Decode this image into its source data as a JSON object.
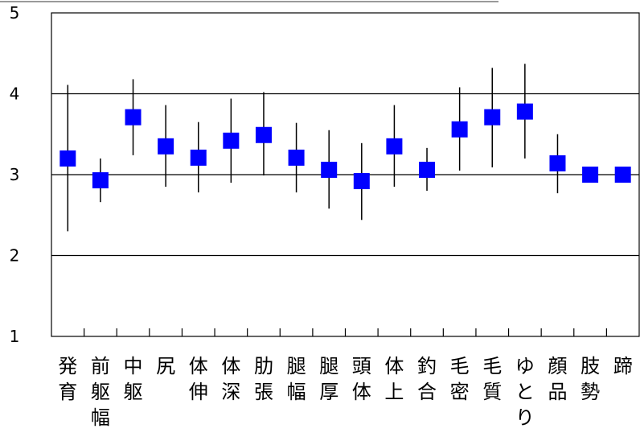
{
  "chart_data": {
    "type": "scatter",
    "title": "",
    "xlabel": "",
    "ylabel": "",
    "ylim": [
      1,
      5
    ],
    "yticks": [
      1,
      2,
      3,
      4,
      5
    ],
    "grid": "horizontal",
    "legend": "none",
    "marker_color": "#0000ff",
    "categories": [
      "発育",
      "前躯幅",
      "中躯",
      "尻",
      "体伸",
      "体深",
      "肋張",
      "腿幅",
      "腿厚",
      "頭体",
      "体上",
      "釣合",
      "毛密",
      "毛質",
      "ゆとり",
      "顔品",
      "肢勢",
      "蹄"
    ],
    "series": [
      {
        "values": [
          3.2,
          2.93,
          3.71,
          3.35,
          3.21,
          3.42,
          3.49,
          3.21,
          3.06,
          2.92,
          3.35,
          3.06,
          3.56,
          3.71,
          3.78,
          3.14,
          3.0,
          3.0
        ],
        "error_low": [
          2.3,
          2.66,
          3.24,
          2.85,
          2.78,
          2.9,
          2.99,
          2.78,
          2.58,
          2.44,
          2.85,
          2.8,
          3.05,
          3.09,
          3.2,
          2.77,
          3.0,
          3.0
        ],
        "error_high": [
          4.11,
          3.2,
          4.18,
          3.86,
          3.65,
          3.94,
          4.02,
          3.64,
          3.55,
          3.39,
          3.86,
          3.33,
          4.08,
          4.32,
          4.37,
          3.5,
          3.0,
          3.0
        ]
      }
    ]
  }
}
